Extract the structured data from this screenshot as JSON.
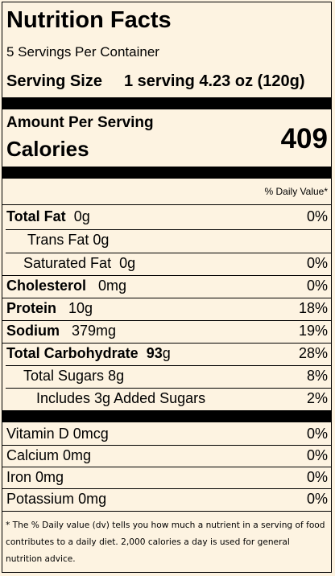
{
  "title": "Nutrition Facts",
  "servings_per_container": "5 Servings Per Container",
  "serving_size_label": "Serving Size",
  "serving_size_value": "1 serving 4.23 oz (120g)",
  "amount_per_serving": "Amount Per Serving",
  "calories_label": "Calories",
  "calories_value": "409",
  "daily_value_header": "% Daily Value*",
  "nutrients": [
    {
      "name": "Total Fat",
      "amount": "0g",
      "dv": "0%"
    },
    {
      "name": "Trans Fat",
      "amount": "0g",
      "dv": ""
    },
    {
      "name": "Saturated Fat",
      "amount": "0g",
      "dv": "0%"
    },
    {
      "name": "Cholesterol",
      "amount": "0mg",
      "dv": "0%"
    },
    {
      "name": "Protein",
      "amount": "10g",
      "dv": "18%"
    },
    {
      "name": "Sodium",
      "amount": "379mg",
      "dv": "19%"
    },
    {
      "name": "Total Carbohydrate",
      "amount": "93",
      "amount_unit": "g",
      "dv": "28%"
    },
    {
      "name": "Total Sugars",
      "amount": "8g",
      "dv": "8%"
    },
    {
      "name": "Includes 3g Added Sugars",
      "amount": "",
      "dv": "2%"
    }
  ],
  "vitamins": [
    {
      "name": "Vitamin D",
      "amount": "0mcg",
      "dv": "0%"
    },
    {
      "name": "Calcium",
      "amount": "0mg",
      "dv": "0%"
    },
    {
      "name": "Iron",
      "amount": "0mg",
      "dv": "0%"
    },
    {
      "name": "Potassium",
      "amount": "0mg",
      "dv": "0%"
    }
  ],
  "footnote": "* The % Daily value (dv) tells you how much a nutrient in a serving of food contributes to a daily diet. 2,000 calories a day is used for general nutrition advice."
}
